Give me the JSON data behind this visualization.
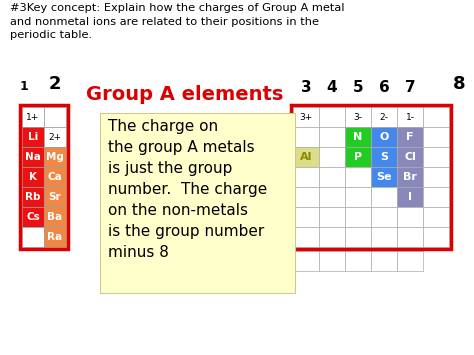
{
  "title_text": "#3Key concept: Explain how the charges of Group A metal\nand nonmetal ions are related to their positions in the\nperiodic table.",
  "group_a_title": "Group A elements",
  "note_text": "The charge on\nthe group A metals\nis just the group\nnumber.  The charge\non the non-metals\nis the group number\nminus 8",
  "left_table": {
    "rows": [
      {
        "col1": "",
        "col2": "",
        "col1_color": "#ffffff",
        "col2_color": "#ffffff"
      },
      {
        "col1": "Li",
        "col2": "",
        "col1_color": "#ee1111",
        "col2_color": "#ffffff"
      },
      {
        "col1": "Na",
        "col2": "Mg",
        "col1_color": "#ee1111",
        "col2_color": "#ee8844"
      },
      {
        "col1": "K",
        "col2": "Ca",
        "col1_color": "#ee1111",
        "col2_color": "#ee8844"
      },
      {
        "col1": "Rb",
        "col2": "Sr",
        "col1_color": "#ee1111",
        "col2_color": "#ee8844"
      },
      {
        "col1": "Cs",
        "col2": "Ba",
        "col1_color": "#ee1111",
        "col2_color": "#ee8844"
      },
      {
        "col1": "",
        "col2": "Ra",
        "col1_color": "#ffffff",
        "col2_color": "#ee8844"
      }
    ]
  },
  "right_table": {
    "group_headers": [
      "3",
      "4",
      "5",
      "6",
      "7"
    ],
    "rows": [
      [
        null,
        null,
        null,
        null,
        null,
        null
      ],
      [
        null,
        null,
        "N",
        "O",
        "F",
        null
      ],
      [
        "Al",
        null,
        "P",
        "S",
        "Cl",
        null
      ],
      [
        null,
        null,
        null,
        "Se",
        "Br",
        null
      ],
      [
        null,
        null,
        null,
        null,
        "I",
        null
      ],
      [
        null,
        null,
        null,
        null,
        null,
        null
      ],
      [
        null,
        null,
        null,
        null,
        null,
        null
      ]
    ],
    "cell_colors": {
      "N": "#22cc22",
      "O": "#4488ee",
      "F": "#8888bb",
      "Al": "#dddd88",
      "P": "#22cc22",
      "S": "#4488ee",
      "Cl": "#8888bb",
      "Se": "#4488ee",
      "Br": "#8888bb",
      "I": "#8888bb"
    },
    "charge_cols": [
      [
        0,
        "3+"
      ],
      [
        2,
        "3-"
      ],
      [
        3,
        "2-"
      ],
      [
        4,
        "1-"
      ]
    ]
  },
  "bg_color": "#ffffff",
  "red_border": "#dd0000",
  "note_bg": "#ffffcc"
}
